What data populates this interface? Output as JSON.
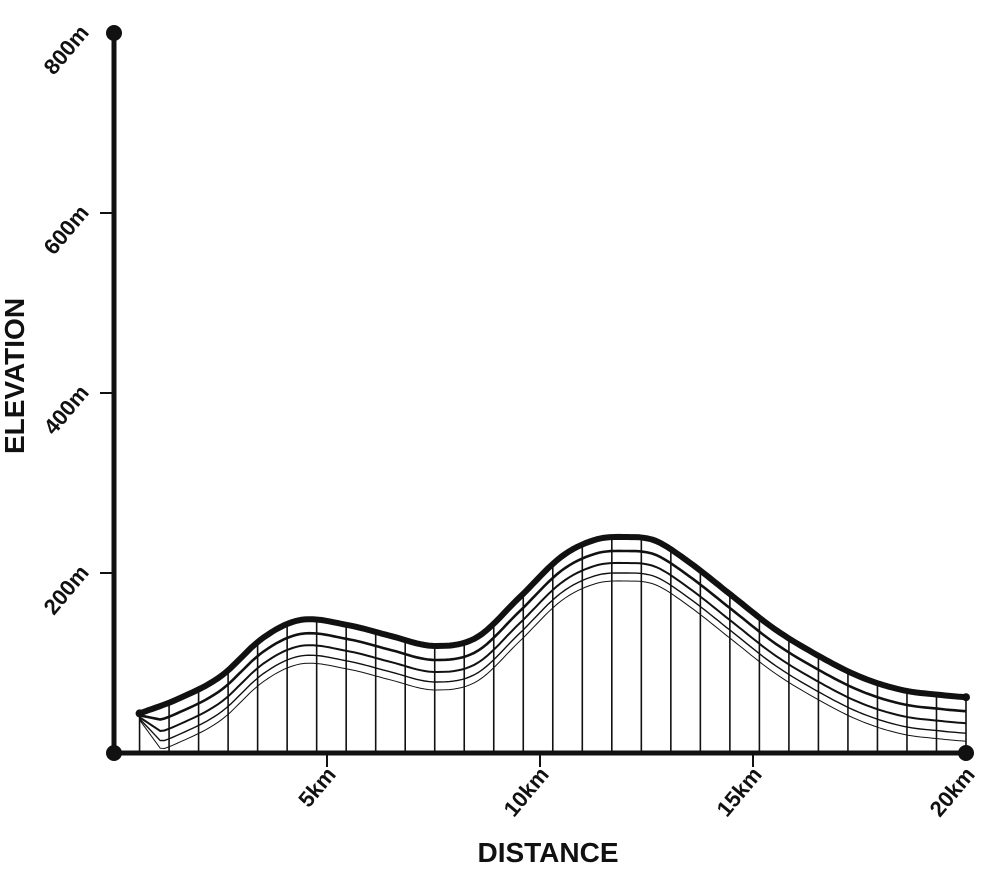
{
  "chart_data": {
    "type": "area",
    "xlabel": "DISTANCE",
    "ylabel": "ELEVATION",
    "xlim": [
      0,
      20
    ],
    "ylim": [
      0,
      800
    ],
    "x_ticks": [
      {
        "value": 5,
        "label": "5km"
      },
      {
        "value": 10,
        "label": "10km"
      },
      {
        "value": 15,
        "label": "15km"
      },
      {
        "value": 20,
        "label": "20km"
      }
    ],
    "y_ticks": [
      {
        "value": 200,
        "label": "200m"
      },
      {
        "value": 400,
        "label": "400m"
      },
      {
        "value": 600,
        "label": "600m"
      },
      {
        "value": 800,
        "label": "800m"
      }
    ],
    "series": [
      {
        "x": [
          0.6,
          1.5,
          2.5,
          3.5,
          4.4,
          5.5,
          6.5,
          7.5,
          8.5,
          9.5,
          10.5,
          11.3,
          12.0,
          12.7,
          13.5,
          14.5,
          15.5,
          16.5,
          17.5,
          18.5,
          19.5,
          20.0
        ],
        "values": [
          44,
          60,
          85,
          128,
          148,
          142,
          130,
          119,
          128,
          172,
          218,
          237,
          240,
          236,
          212,
          175,
          138,
          109,
          85,
          70,
          64,
          62
        ]
      }
    ],
    "colors": {
      "line": "#111111",
      "background": "#ffffff"
    }
  }
}
